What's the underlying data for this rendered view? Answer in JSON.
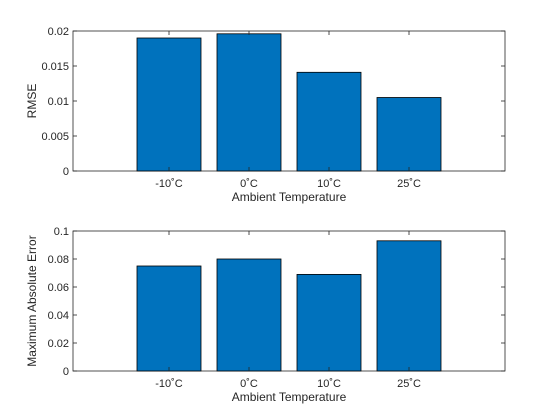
{
  "chart_data": [
    {
      "type": "bar",
      "categories": [
        "-10˚C",
        "0˚C",
        "10˚C",
        "25˚C"
      ],
      "values": [
        0.019,
        0.0196,
        0.0141,
        0.0105
      ],
      "title": "",
      "xlabel": "Ambient Temperature",
      "ylabel": "RMSE",
      "ylim": [
        0,
        0.02
      ],
      "yticks": [
        0,
        0.005,
        0.01,
        0.015,
        0.02
      ],
      "ytick_labels": [
        "0",
        "0.005",
        "0.01",
        "0.015",
        "0.02"
      ],
      "bar_color": "#0072BD",
      "grid": false
    },
    {
      "type": "bar",
      "categories": [
        "-10˚C",
        "0˚C",
        "10˚C",
        "25˚C"
      ],
      "values": [
        0.075,
        0.08,
        0.069,
        0.093
      ],
      "title": "",
      "xlabel": "Ambient Temperature",
      "ylabel": "Maximum Absolute Error",
      "ylim": [
        0,
        0.1
      ],
      "yticks": [
        0,
        0.02,
        0.04,
        0.06,
        0.08,
        0.1
      ],
      "ytick_labels": [
        "0",
        "0.02",
        "0.04",
        "0.06",
        "0.08",
        "0.1"
      ],
      "bar_color": "#0072BD",
      "grid": false
    }
  ]
}
